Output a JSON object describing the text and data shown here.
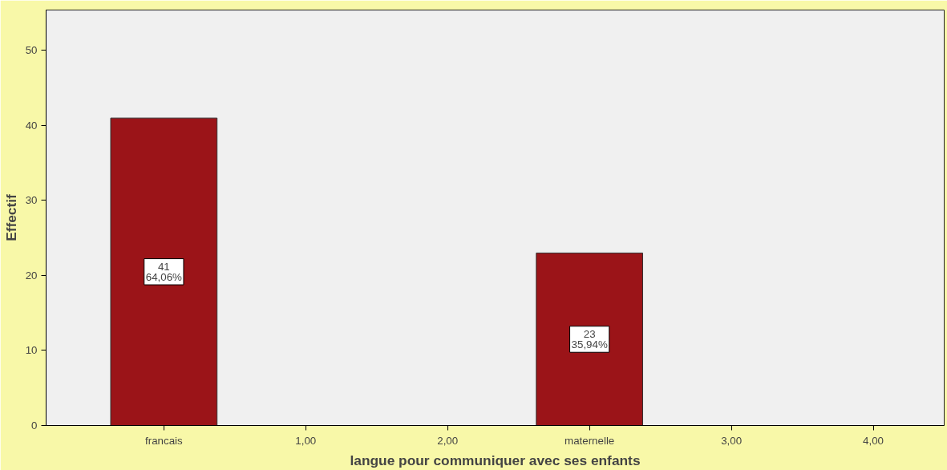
{
  "chart_data": {
    "type": "bar",
    "xlabel": "langue pour communiquer avec ses enfants",
    "ylabel": "Effectif",
    "categories": [
      "francais",
      "1,00",
      "2,00",
      "maternelle",
      "3,00",
      "4,00"
    ],
    "values": [
      41,
      0,
      0,
      23,
      0,
      0
    ],
    "value_labels": [
      "41\n64,06%",
      null,
      null,
      "23\n35,94%",
      null,
      null
    ],
    "color": "#9b1418",
    "ylim": [
      0,
      55.4
    ],
    "yticks": [
      0,
      10,
      20,
      30,
      40,
      50
    ],
    "grid": false
  }
}
